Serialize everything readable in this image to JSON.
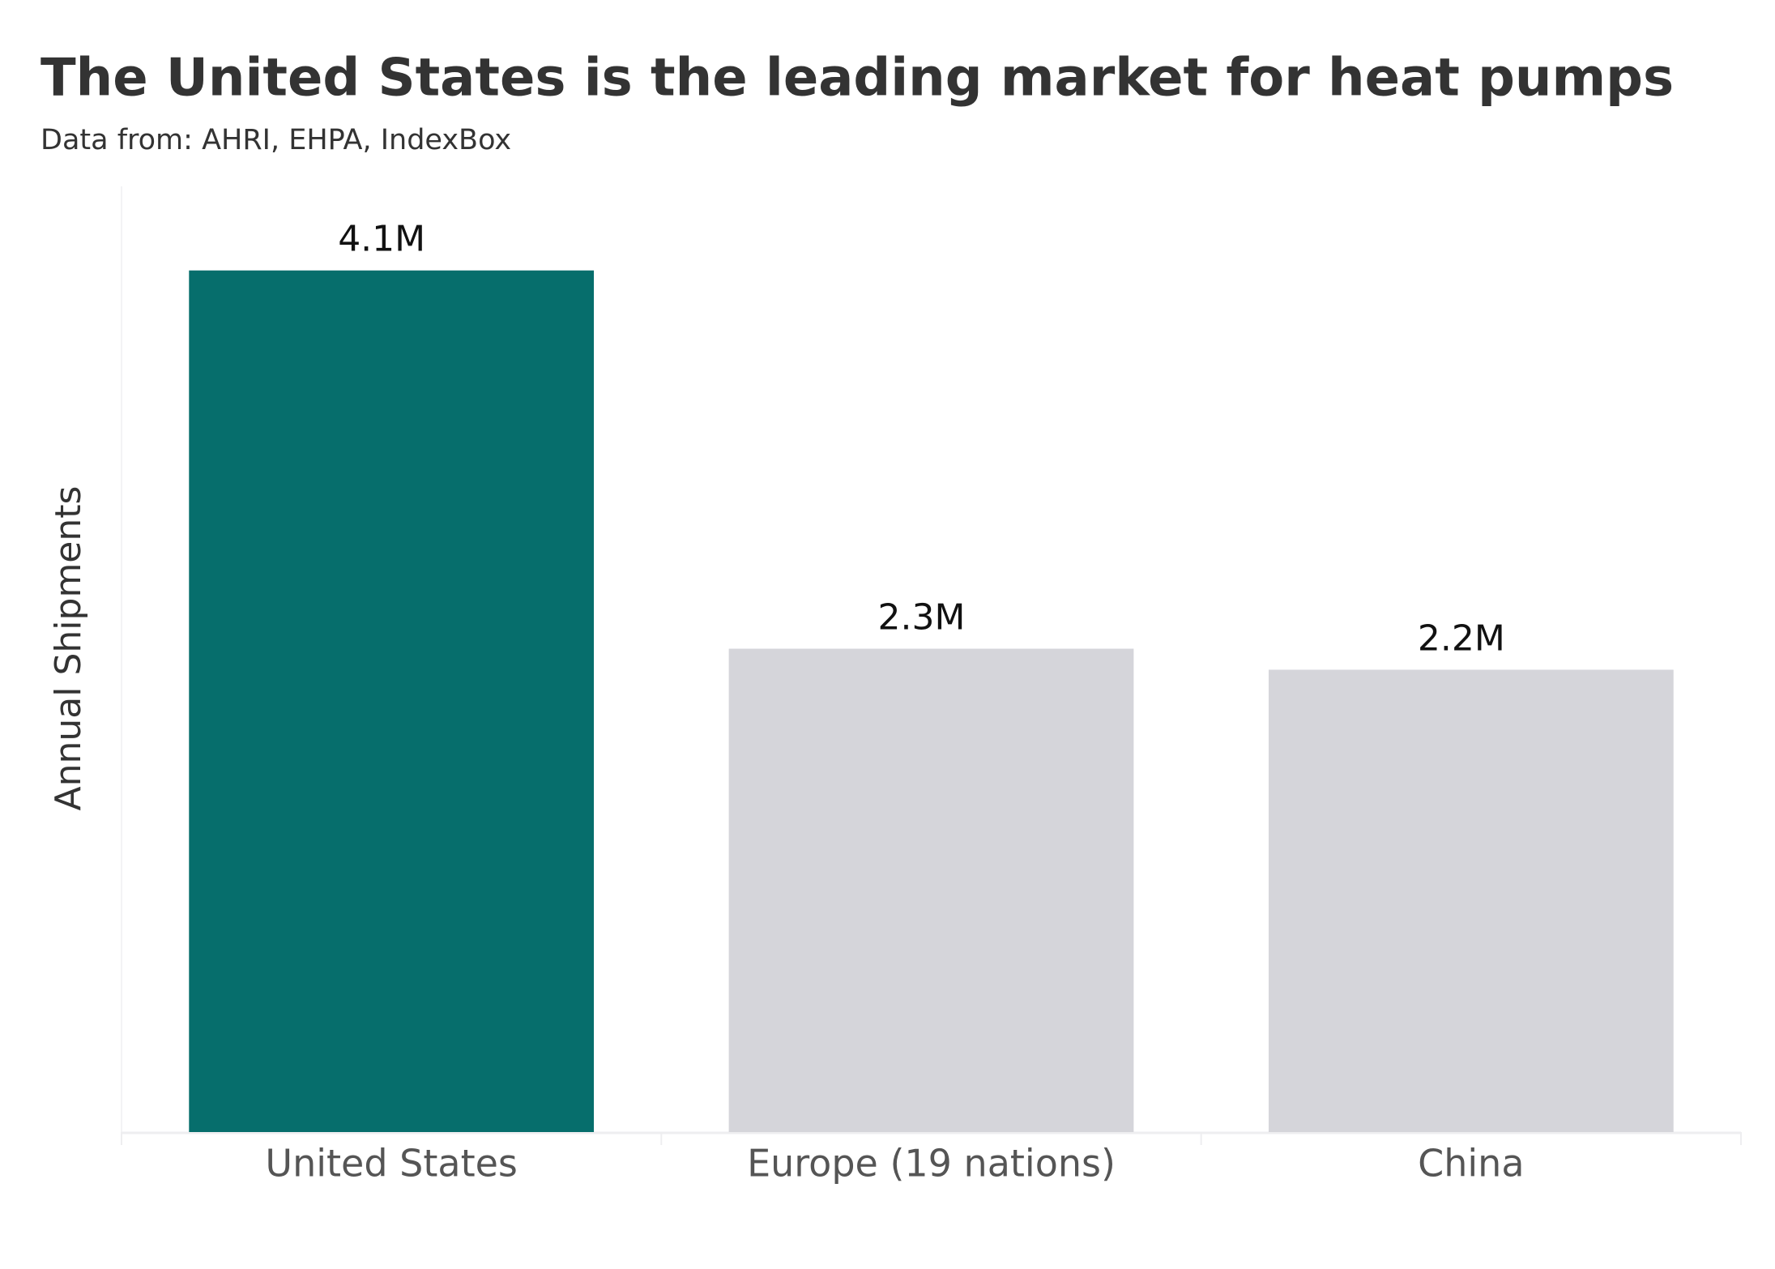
{
  "chart_data": {
    "type": "bar",
    "title": "The United States is the leading market for heat pumps",
    "subtitle": "Data from: AHRI, EHPA, IndexBox",
    "y_label": "Annual Shipments",
    "categories": [
      "United States",
      "Europe (19 nations)",
      "China"
    ],
    "values": [
      4100000,
      2300000,
      2200000
    ],
    "value_labels": [
      "4.1M",
      "2.3M",
      "2.2M"
    ],
    "colors": [
      "#066e6c",
      "#d5d5da",
      "#d5d5da"
    ],
    "ylim": [
      0,
      4500000
    ],
    "grid": false
  }
}
